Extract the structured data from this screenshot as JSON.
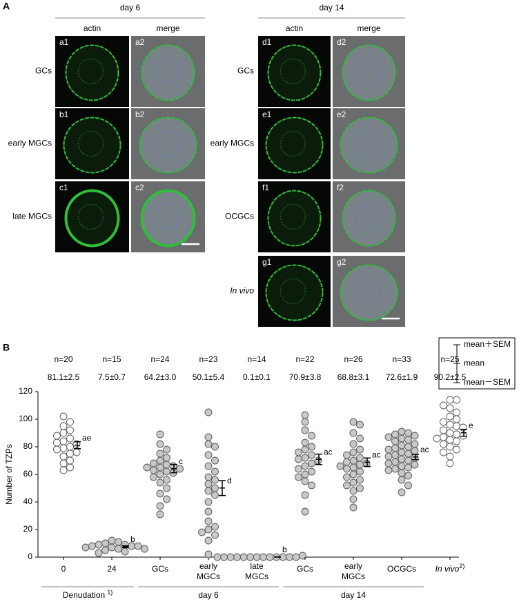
{
  "panel_a": {
    "label": "A",
    "groups": [
      {
        "title": "day 6",
        "columns": [
          "actin",
          "merge"
        ],
        "rows": [
          {
            "label": "GCs",
            "panels": [
              "a1",
              "a2"
            ]
          },
          {
            "label": "early MGCs",
            "panels": [
              "b1",
              "b2"
            ]
          },
          {
            "label": "late MGCs",
            "panels": [
              "c1",
              "c2"
            ]
          }
        ]
      },
      {
        "title": "day 14",
        "columns": [
          "actin",
          "merge"
        ],
        "rows": [
          {
            "label": "GCs",
            "panels": [
              "d1",
              "d2"
            ]
          },
          {
            "label": "early MGCs",
            "panels": [
              "e1",
              "e2"
            ]
          },
          {
            "label": "OCGCs",
            "panels": [
              "f1",
              "f2"
            ]
          },
          {
            "label": "In vivo",
            "italic": true,
            "panels": [
              "g1",
              "g2"
            ]
          }
        ]
      }
    ]
  },
  "chart_data": {
    "type": "dot",
    "panel_label": "B",
    "ylabel": "Number of TZPs",
    "ylim": [
      0,
      120
    ],
    "yticks": [
      0,
      20,
      40,
      60,
      80,
      100,
      120
    ],
    "groups": [
      {
        "label": "Denudation",
        "note": "1)",
        "categories": [
          {
            "lines": [
              "0"
            ]
          },
          {
            "lines": [
              "24"
            ]
          }
        ]
      },
      {
        "label": "day 6",
        "categories": [
          {
            "lines": [
              "GCs"
            ]
          },
          {
            "lines": [
              "early",
              "MGCs"
            ]
          },
          {
            "lines": [
              "late",
              "MGCs"
            ]
          }
        ]
      },
      {
        "label": "day 14",
        "categories": [
          {
            "lines": [
              "GCs"
            ]
          },
          {
            "lines": [
              "early",
              "MGCs"
            ]
          },
          {
            "lines": [
              "OCGCs"
            ]
          }
        ]
      },
      {
        "categories": [
          {
            "lines": [
              "In vivo"
            ],
            "italic": true,
            "note": "2)"
          }
        ]
      }
    ],
    "n": [
      20,
      15,
      24,
      23,
      14,
      22,
      26,
      33,
      25
    ],
    "n_labels": [
      "n=20",
      "n=15",
      "n=24",
      "n=23",
      "n=14",
      "n=22",
      "n=26",
      "n=33",
      "n=25"
    ],
    "mean": [
      81.1,
      7.5,
      64.2,
      50.1,
      0.1,
      70.9,
      68.8,
      72.6,
      90.2
    ],
    "sem": [
      2.5,
      0.7,
      3.0,
      5.4,
      0.1,
      3.8,
      3.1,
      1.9,
      2.5
    ],
    "summary_labels": [
      "81.1±2.5",
      "7.5±0.7",
      "64.2±3.0",
      "50.1±5.4",
      "0.1±0.1",
      "70.9±3.8",
      "68.8±3.1",
      "72.6±1.9",
      "90.2±2.5"
    ],
    "letters": [
      "ae",
      "b",
      "c",
      "d",
      "b",
      "ac",
      "ac",
      "ac",
      "e"
    ],
    "point_fills": [
      "#ffffff",
      "#c8c8c8",
      "#c8c8c8",
      "#c8c8c8",
      "#c8c8c8",
      "#c8c8c8",
      "#c8c8c8",
      "#c8c8c8",
      "#ffffff"
    ],
    "points": [
      [
        102,
        98,
        95,
        92,
        90,
        88,
        86,
        84,
        83,
        82,
        80,
        79,
        78,
        76,
        75,
        73,
        70,
        68,
        65,
        63
      ],
      [
        12,
        11,
        10,
        9,
        9,
        8,
        8,
        8,
        7,
        7,
        6,
        6,
        5,
        4,
        3
      ],
      [
        89,
        82,
        78,
        75,
        72,
        70,
        68,
        67,
        66,
        65,
        65,
        64,
        63,
        62,
        61,
        60,
        58,
        56,
        54,
        50,
        46,
        42,
        37,
        31
      ],
      [
        105,
        87,
        82,
        80,
        74,
        70,
        66,
        62,
        58,
        56,
        53,
        50,
        48,
        45,
        40,
        33,
        26,
        22,
        20,
        18,
        16,
        12,
        2
      ],
      [
        0,
        0,
        0,
        0,
        0,
        0,
        0,
        0,
        0,
        0,
        0,
        0,
        0,
        1
      ],
      [
        103,
        98,
        92,
        88,
        83,
        80,
        78,
        76,
        74,
        72,
        71,
        70,
        68,
        66,
        64,
        62,
        60,
        58,
        55,
        52,
        45,
        33
      ],
      [
        98,
        96,
        90,
        86,
        82,
        78,
        76,
        74,
        72,
        70,
        69,
        68,
        67,
        66,
        65,
        64,
        62,
        60,
        58,
        56,
        54,
        52,
        50,
        48,
        42,
        36
      ],
      [
        91,
        90,
        89,
        88,
        87,
        86,
        85,
        84,
        82,
        81,
        80,
        79,
        78,
        77,
        76,
        75,
        74,
        73,
        72,
        71,
        70,
        69,
        68,
        67,
        66,
        65,
        64,
        63,
        61,
        59,
        56,
        52,
        47
      ],
      [
        114,
        114,
        110,
        108,
        105,
        102,
        100,
        98,
        96,
        95,
        94,
        92,
        90,
        89,
        88,
        87,
        86,
        85,
        84,
        82,
        80,
        78,
        76,
        73,
        68
      ]
    ],
    "legend": [
      "mean＋SEM",
      "mean",
      "mean－SEM"
    ]
  }
}
